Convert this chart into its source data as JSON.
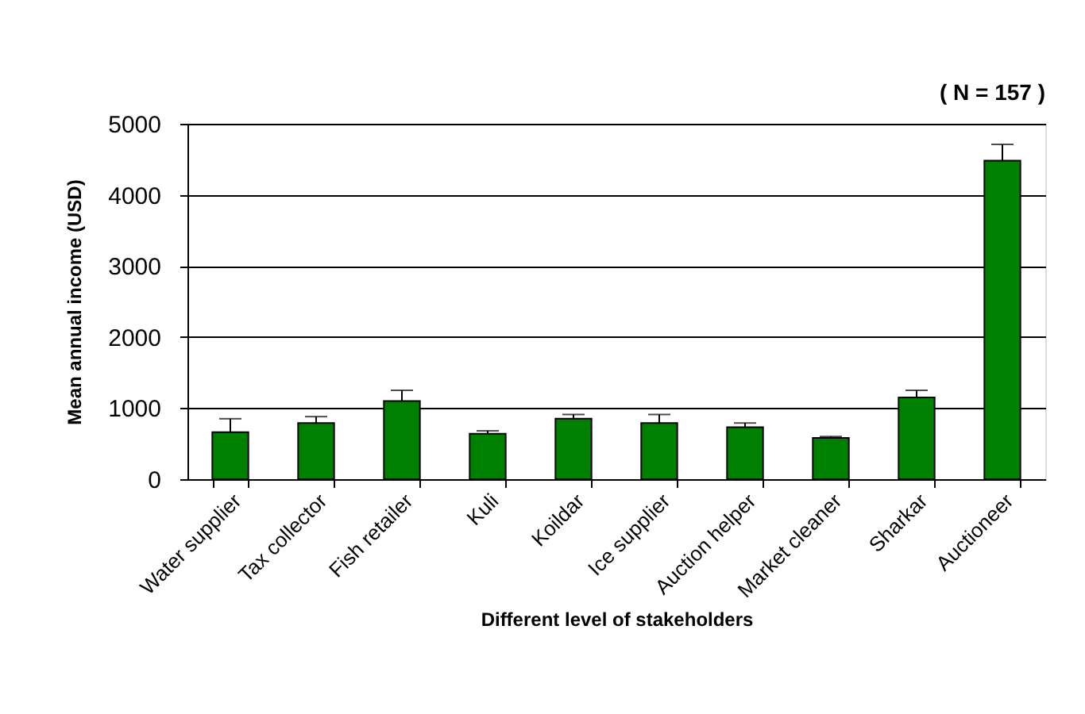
{
  "chart_data": {
    "type": "bar",
    "xlabel": "Different level of stakeholders",
    "ylabel": "Mean annual income (USD)",
    "annotations": [
      "( N = 157 )"
    ],
    "categories": [
      "Water supplier",
      "Tax collector",
      "Fish retailer",
      "Kuli",
      "Koildar",
      "Ice supplier",
      "Auction helper",
      "Market cleaner",
      "Sharkar",
      "Auctioneer"
    ],
    "values": [
      660,
      790,
      1100,
      640,
      850,
      790,
      730,
      580,
      1150,
      4480
    ],
    "errors": [
      [
        660,
        850
      ],
      [
        790,
        880
      ],
      [
        1100,
        1250
      ],
      [
        640,
        680
      ],
      [
        850,
        910
      ],
      [
        790,
        910
      ],
      [
        730,
        790
      ],
      [
        580,
        600
      ],
      [
        1150,
        1250
      ],
      [
        4480,
        4710
      ]
    ],
    "color": "#008000",
    "ylim": [
      0,
      5000
    ],
    "yticks": [
      0,
      1000,
      2000,
      3000,
      4000,
      5000
    ],
    "grid": "y"
  }
}
